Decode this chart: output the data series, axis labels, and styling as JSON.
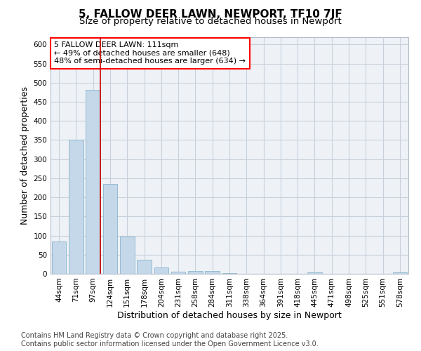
{
  "title": "5, FALLOW DEER LAWN, NEWPORT, TF10 7JF",
  "subtitle": "Size of property relative to detached houses in Newport",
  "xlabel": "Distribution of detached houses by size in Newport",
  "ylabel": "Number of detached properties",
  "categories": [
    "44sqm",
    "71sqm",
    "97sqm",
    "124sqm",
    "151sqm",
    "178sqm",
    "204sqm",
    "231sqm",
    "258sqm",
    "284sqm",
    "311sqm",
    "338sqm",
    "364sqm",
    "391sqm",
    "418sqm",
    "445sqm",
    "471sqm",
    "498sqm",
    "525sqm",
    "551sqm",
    "578sqm"
  ],
  "values": [
    84,
    351,
    481,
    235,
    97,
    36,
    17,
    5,
    8,
    7,
    1,
    0,
    0,
    0,
    0,
    4,
    0,
    0,
    0,
    0,
    3
  ],
  "bar_color": "#c5d8ea",
  "bar_edge_color": "#8ab4cc",
  "vline_color": "#cc0000",
  "annotation_text_line1": "5 FALLOW DEER LAWN: 111sqm",
  "annotation_text_line2": "← 49% of detached houses are smaller (648)",
  "annotation_text_line3": "48% of semi-detached houses are larger (634) →",
  "ylim": [
    0,
    620
  ],
  "yticks": [
    0,
    50,
    100,
    150,
    200,
    250,
    300,
    350,
    400,
    450,
    500,
    550,
    600
  ],
  "footer_line1": "Contains HM Land Registry data © Crown copyright and database right 2025.",
  "footer_line2": "Contains public sector information licensed under the Open Government Licence v3.0.",
  "bg_color": "#ffffff",
  "plot_bg_color": "#eef2f7",
  "grid_color": "#c8d0dc",
  "title_fontsize": 11,
  "subtitle_fontsize": 9.5,
  "axis_label_fontsize": 9,
  "tick_fontsize": 7.5,
  "footer_fontsize": 7,
  "ann_fontsize": 8
}
